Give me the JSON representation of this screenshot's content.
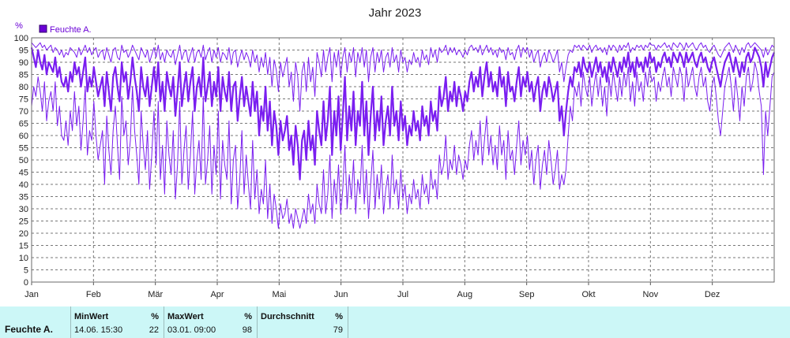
{
  "chart_data": {
    "type": "line",
    "title": "Jahr 2023",
    "y_unit": "%",
    "ylim": [
      0,
      100
    ],
    "y_ticks": [
      0,
      5,
      10,
      15,
      20,
      25,
      30,
      35,
      40,
      45,
      50,
      55,
      60,
      65,
      70,
      75,
      80,
      85,
      90,
      95,
      100
    ],
    "x_ticks": [
      "Jan",
      "Feb",
      "Mär",
      "Apr",
      "Mai",
      "Jun",
      "Jul",
      "Aug",
      "Sep",
      "Okt",
      "Nov",
      "Dez"
    ],
    "grid": true,
    "legend": [
      "Feuchte A."
    ],
    "legend_position": "top-left",
    "color": "#7a1ef0",
    "series": [
      {
        "name": "Feuchte A.",
        "style": "bold",
        "values": [
          96,
          92,
          88,
          95,
          90,
          87,
          93,
          85,
          90,
          88,
          86,
          92,
          84,
          88,
          82,
          80,
          84,
          78,
          86,
          82,
          90,
          85,
          88,
          80,
          86,
          92,
          78,
          84,
          80,
          88,
          82,
          76,
          80,
          84,
          72,
          86,
          78,
          70,
          84,
          88,
          80,
          74,
          90,
          82,
          86,
          75,
          82,
          92,
          84,
          78,
          70,
          88,
          80,
          76,
          84,
          72,
          80,
          88,
          78,
          90,
          74,
          82,
          70,
          86,
          80,
          76,
          84,
          68,
          78,
          90,
          72,
          80,
          86,
          74,
          82,
          88,
          70,
          80,
          84,
          76,
          92,
          74,
          80,
          86,
          72,
          82,
          76,
          88,
          70,
          84,
          78,
          74,
          86,
          70,
          80,
          82,
          66,
          76,
          84,
          72,
          80,
          74,
          68,
          82,
          70,
          78,
          60,
          72,
          66,
          80,
          62,
          74,
          56,
          70,
          64,
          52,
          66,
          58,
          62,
          68,
          54,
          60,
          48,
          64,
          56,
          42,
          58,
          62,
          50,
          66,
          54,
          60,
          48,
          70,
          62,
          56,
          74,
          58,
          66,
          80,
          52,
          70,
          60,
          76,
          54,
          68,
          84,
          58,
          72,
          62,
          78,
          56,
          70,
          64,
          82,
          60,
          74,
          52,
          68,
          80,
          58,
          70,
          62,
          76,
          56,
          66,
          72,
          60,
          80,
          64,
          70,
          58,
          74,
          62,
          68,
          56,
          64,
          60,
          70,
          62,
          66,
          58,
          72,
          64,
          68,
          60,
          74,
          66,
          70,
          62,
          80,
          72,
          76,
          84,
          70,
          78,
          74,
          82,
          72,
          80,
          76,
          70,
          78,
          74,
          82,
          86,
          78,
          84,
          80,
          88,
          76,
          84,
          90,
          80,
          86,
          78,
          82,
          76,
          88,
          80,
          84,
          72,
          86,
          78,
          80,
          74,
          82,
          88,
          76,
          84,
          80,
          86,
          78,
          82,
          74,
          80,
          84,
          70,
          78,
          82,
          76,
          84,
          80,
          74,
          78,
          82,
          66,
          72,
          60,
          70,
          78,
          84,
          80,
          88,
          86,
          90,
          84,
          92,
          88,
          86,
          90,
          84,
          88,
          92,
          86,
          90,
          84,
          88,
          82,
          90,
          86,
          92,
          88,
          84,
          90,
          86,
          92,
          88,
          94,
          86,
          90,
          84,
          92,
          88,
          90,
          86,
          92,
          88,
          94,
          90,
          92,
          86,
          90,
          88,
          92,
          94,
          90,
          92,
          88,
          94,
          92,
          90,
          94,
          92,
          88,
          94,
          90,
          92,
          94,
          90,
          88,
          92,
          94,
          90,
          92,
          88,
          86,
          90,
          92,
          88,
          84,
          80,
          86,
          90,
          92,
          94,
          90,
          86,
          92,
          88,
          84,
          90,
          86,
          92,
          94,
          90,
          92,
          96,
          94,
          92,
          88,
          80,
          90,
          84,
          88,
          92,
          94
        ]
      },
      {
        "name": "Feuchte A. max",
        "style": "thin",
        "values": [
          98,
          97,
          96,
          97,
          98,
          96,
          97,
          95,
          96,
          97,
          94,
          96,
          95,
          93,
          95,
          92,
          94,
          93,
          96,
          95,
          94,
          92,
          96,
          93,
          95,
          97,
          94,
          96,
          93,
          95,
          96,
          92,
          94,
          95,
          91,
          96,
          93,
          90,
          95,
          96,
          92,
          91,
          97,
          94,
          95,
          92,
          94,
          97,
          95,
          93,
          91,
          96,
          94,
          92,
          95,
          90,
          93,
          96,
          92,
          97,
          91,
          94,
          90,
          95,
          93,
          92,
          95,
          89,
          93,
          97,
          91,
          94,
          95,
          90,
          93,
          96,
          90,
          94,
          95,
          92,
          97,
          91,
          94,
          96,
          90,
          95,
          92,
          96,
          90,
          94,
          93,
          91,
          96,
          89,
          94,
          95,
          88,
          92,
          95,
          91,
          94,
          92,
          88,
          95,
          90,
          93,
          86,
          92,
          88,
          94,
          85,
          92,
          80,
          91,
          87,
          78,
          90,
          84,
          88,
          92,
          80,
          86,
          74,
          90,
          84,
          70,
          86,
          90,
          78,
          92,
          82,
          88,
          76,
          94,
          90,
          84,
          95,
          86,
          92,
          96,
          82,
          94,
          88,
          95,
          84,
          92,
          96,
          86,
          94,
          90,
          96,
          84,
          94,
          90,
          96,
          88,
          95,
          82,
          92,
          96,
          86,
          94,
          90,
          95,
          86,
          92,
          94,
          88,
          96,
          90,
          93,
          86,
          95,
          90,
          92,
          86,
          91,
          89,
          94,
          90,
          92,
          88,
          95,
          91,
          93,
          89,
          96,
          92,
          95,
          90,
          96,
          94,
          95,
          97,
          93,
          96,
          94,
          96,
          93,
          95,
          94,
          92,
          95,
          93,
          96,
          97,
          95,
          96,
          94,
          97,
          93,
          95,
          97,
          94,
          96,
          93,
          95,
          92,
          96,
          94,
          95,
          91,
          96,
          93,
          94,
          91,
          95,
          97,
          92,
          96,
          94,
          96,
          92,
          95,
          90,
          93,
          95,
          88,
          92,
          94,
          90,
          95,
          93,
          90,
          92,
          95,
          86,
          90,
          82,
          88,
          93,
          95,
          94,
          97,
          96,
          97,
          95,
          97,
          96,
          95,
          97,
          94,
          96,
          97,
          95,
          96,
          94,
          96,
          93,
          97,
          95,
          97,
          96,
          94,
          97,
          95,
          97,
          96,
          98,
          94,
          96,
          95,
          97,
          96,
          97,
          95,
          97,
          96,
          98,
          97,
          97,
          95,
          97,
          96,
          97,
          98,
          96,
          97,
          95,
          98,
          97,
          96,
          98,
          97,
          95,
          98,
          96,
          97,
          98,
          96,
          95,
          97,
          98,
          96,
          97,
          95,
          94,
          96,
          97,
          95,
          93,
          92,
          94,
          96,
          97,
          98,
          96,
          94,
          97,
          95,
          93,
          96,
          94,
          97,
          98,
          96,
          97,
          98,
          97,
          96,
          95,
          92,
          96,
          93,
          95,
          97,
          96
        ]
      },
      {
        "name": "Feuchte A. min",
        "style": "thin",
        "values": [
          72,
          80,
          76,
          84,
          78,
          70,
          82,
          66,
          74,
          78,
          70,
          82,
          64,
          72,
          60,
          58,
          66,
          56,
          70,
          62,
          78,
          64,
          72,
          54,
          66,
          80,
          52,
          62,
          58,
          74,
          60,
          50,
          56,
          62,
          40,
          68,
          54,
          44,
          62,
          72,
          56,
          42,
          76,
          60,
          66,
          48,
          58,
          80,
          62,
          52,
          40,
          70,
          56,
          46,
          62,
          38,
          52,
          70,
          48,
          74,
          42,
          56,
          36,
          66,
          52,
          44,
          62,
          34,
          48,
          74,
          40,
          54,
          64,
          38,
          52,
          70,
          36,
          50,
          58,
          42,
          76,
          40,
          50,
          64,
          36,
          56,
          44,
          70,
          34,
          58,
          48,
          42,
          66,
          32,
          50,
          56,
          30,
          42,
          62,
          36,
          52,
          40,
          30,
          58,
          34,
          46,
          28,
          38,
          32,
          50,
          26,
          40,
          24,
          36,
          30,
          22,
          32,
          26,
          28,
          34,
          24,
          28,
          22,
          30,
          26,
          22,
          26,
          30,
          24,
          36,
          28,
          32,
          24,
          40,
          32,
          28,
          46,
          28,
          36,
          52,
          26,
          42,
          32,
          48,
          28,
          38,
          56,
          30,
          44,
          34,
          50,
          28,
          42,
          36,
          56,
          32,
          46,
          26,
          40,
          54,
          30,
          44,
          34,
          48,
          28,
          38,
          44,
          30,
          52,
          36,
          42,
          30,
          46,
          34,
          40,
          28,
          36,
          32,
          42,
          34,
          38,
          30,
          44,
          36,
          40,
          32,
          46,
          38,
          42,
          34,
          52,
          44,
          48,
          60,
          42,
          50,
          46,
          56,
          44,
          52,
          48,
          42,
          50,
          46,
          56,
          62,
          50,
          58,
          52,
          66,
          48,
          58,
          68,
          52,
          60,
          48,
          56,
          46,
          64,
          52,
          58,
          42,
          62,
          50,
          54,
          44,
          56,
          66,
          48,
          58,
          52,
          60,
          46,
          54,
          40,
          50,
          56,
          38,
          48,
          54,
          44,
          58,
          50,
          40,
          46,
          54,
          38,
          44,
          40,
          46,
          60,
          72,
          66,
          80,
          76,
          82,
          72,
          86,
          80,
          76,
          84,
          72,
          80,
          86,
          76,
          84,
          72,
          80,
          68,
          84,
          76,
          86,
          80,
          74,
          84,
          76,
          86,
          80,
          88,
          74,
          82,
          72,
          86,
          78,
          82,
          74,
          86,
          80,
          88,
          82,
          84,
          74,
          82,
          78,
          84,
          88,
          80,
          84,
          76,
          88,
          84,
          80,
          88,
          84,
          74,
          88,
          80,
          84,
          88,
          80,
          76,
          84,
          88,
          80,
          84,
          74,
          70,
          80,
          84,
          76,
          66,
          60,
          70,
          80,
          84,
          88,
          80,
          70,
          84,
          76,
          66,
          80,
          72,
          84,
          88,
          78,
          82,
          90,
          86,
          78,
          72,
          44,
          70,
          60,
          72,
          84,
          86
        ]
      }
    ]
  },
  "stats": {
    "row_label": "Feuchte A.",
    "min": {
      "label": "MinWert",
      "unit": "%",
      "time": "14.06.  15:30",
      "value": "22"
    },
    "max": {
      "label": "MaxWert",
      "unit": "%",
      "time": "03.01.  09:00",
      "value": "98"
    },
    "avg": {
      "label": "Durchschnitt",
      "unit": "%",
      "time": "",
      "value": "79"
    }
  }
}
